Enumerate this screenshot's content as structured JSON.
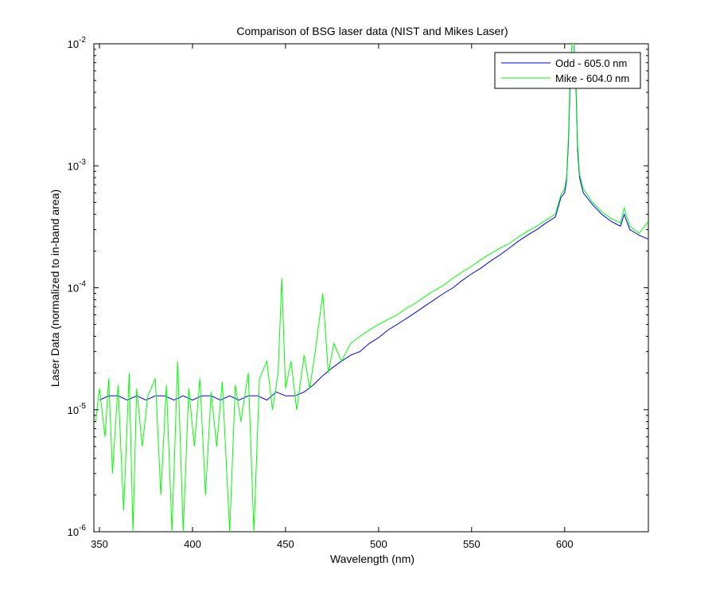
{
  "chart_data": {
    "type": "line",
    "title": "Comparison of BSG laser data (NIST and Mikes Laser)",
    "xlabel": "Wavelength (nm)",
    "ylabel": "Laser Data (normalized to in-band area)",
    "xlim": [
      347,
      645
    ],
    "ylim": [
      1e-06,
      0.01
    ],
    "yscale": "log",
    "grid": false,
    "legend_position": "top-right",
    "x_ticks": [
      {
        "value": 350,
        "label": "350"
      },
      {
        "value": 400,
        "label": "400"
      },
      {
        "value": 450,
        "label": "450"
      },
      {
        "value": 500,
        "label": "500"
      },
      {
        "value": 550,
        "label": "550"
      },
      {
        "value": 600,
        "label": "600"
      }
    ],
    "y_ticks": [
      {
        "value": 1e-06,
        "base": "10",
        "exp": "-6"
      },
      {
        "value": 1e-05,
        "base": "10",
        "exp": "-5"
      },
      {
        "value": 0.0001,
        "base": "10",
        "exp": "-4"
      },
      {
        "value": 0.001,
        "base": "10",
        "exp": "-3"
      },
      {
        "value": 0.01,
        "base": "10",
        "exp": "-2"
      }
    ],
    "series": [
      {
        "name": "Odd - 605.0 nm",
        "color": "#0000ff",
        "x": [
          350,
          355,
          360,
          365,
          370,
          375,
          380,
          385,
          390,
          395,
          400,
          405,
          410,
          415,
          420,
          425,
          430,
          435,
          440,
          445,
          450,
          455,
          460,
          465,
          470,
          475,
          480,
          485,
          490,
          495,
          500,
          505,
          510,
          515,
          520,
          525,
          530,
          535,
          540,
          545,
          550,
          555,
          560,
          565,
          570,
          575,
          580,
          585,
          590,
          595,
          598,
          600,
          601,
          602,
          603,
          604,
          605,
          606,
          607,
          608,
          610,
          615,
          620,
          625,
          630,
          632,
          635,
          640,
          645
        ],
        "y": [
          1.2e-05,
          1.3e-05,
          1.3e-05,
          1.2e-05,
          1.3e-05,
          1.2e-05,
          1.3e-05,
          1.3e-05,
          1.2e-05,
          1.3e-05,
          1.2e-05,
          1.3e-05,
          1.3e-05,
          1.2e-05,
          1.3e-05,
          1.2e-05,
          1.3e-05,
          1.3e-05,
          1.2e-05,
          1.4e-05,
          1.3e-05,
          1.3e-05,
          1.4e-05,
          1.6e-05,
          1.9e-05,
          2.2e-05,
          2.5e-05,
          2.8e-05,
          3e-05,
          3.5e-05,
          3.9e-05,
          4.5e-05,
          5e-05,
          5.6e-05,
          6.3e-05,
          7.1e-05,
          8e-05,
          9e-05,
          0.0001,
          0.000115,
          0.00013,
          0.000145,
          0.000165,
          0.000185,
          0.00021,
          0.00024,
          0.00027,
          0.0003,
          0.00034,
          0.00038,
          0.00055,
          0.0006,
          0.00075,
          0.0015,
          0.005,
          0.01,
          0.01,
          0.005,
          0.0013,
          0.0008,
          0.0006,
          0.00048,
          0.0004,
          0.00035,
          0.00032,
          0.0004,
          0.0003,
          0.00027,
          0.00025
        ]
      },
      {
        "name": "Mike - 604.0 nm",
        "color": "#00ff00",
        "x": [
          348,
          350,
          353,
          355,
          357,
          360,
          363,
          366,
          368,
          370,
          373,
          376,
          380,
          383,
          386,
          389,
          392,
          395,
          398,
          401,
          404,
          407,
          410,
          413,
          416,
          420,
          423,
          426,
          430,
          433,
          436,
          440,
          443,
          446,
          448,
          450,
          453,
          456,
          460,
          463,
          466,
          470,
          473,
          476,
          480,
          485,
          490,
          495,
          500,
          505,
          510,
          515,
          520,
          525,
          530,
          535,
          540,
          545,
          550,
          555,
          560,
          565,
          570,
          575,
          580,
          585,
          590,
          595,
          598,
          600,
          601,
          602,
          603,
          604,
          605,
          606,
          607,
          608,
          610,
          615,
          620,
          625,
          630,
          632,
          635,
          640,
          645
        ],
        "y": [
          8e-06,
          1.5e-05,
          6e-06,
          1.8e-05,
          3e-06,
          1.6e-05,
          1.5e-06,
          2e-05,
          1e-06,
          1.5e-05,
          5e-06,
          1.3e-05,
          1.8e-05,
          2e-06,
          1.6e-05,
          1e-06,
          2.5e-05,
          1e-06,
          1.5e-05,
          5e-06,
          1.8e-05,
          2e-06,
          1.4e-05,
          5e-06,
          1.7e-05,
          1e-06,
          1.6e-05,
          8e-06,
          2e-05,
          1e-06,
          1.8e-05,
          2.5e-05,
          1e-05,
          2e-05,
          0.00012,
          1.5e-05,
          2.5e-05,
          1e-05,
          2.8e-05,
          1.5e-05,
          3e-05,
          9e-05,
          2e-05,
          3.5e-05,
          2.5e-05,
          3.5e-05,
          4e-05,
          4.5e-05,
          5e-05,
          5.5e-05,
          6e-05,
          6.8e-05,
          7.5e-05,
          8.5e-05,
          9.5e-05,
          0.000105,
          0.00012,
          0.000135,
          0.00015,
          0.00017,
          0.00019,
          0.00021,
          0.00023,
          0.00026,
          0.00029,
          0.00032,
          0.00036,
          0.0004,
          0.00058,
          0.00065,
          0.0008,
          0.0017,
          0.006,
          0.01,
          0.01,
          0.006,
          0.0015,
          0.00085,
          0.00065,
          0.0005,
          0.00042,
          0.00037,
          0.00034,
          0.00045,
          0.00032,
          0.00028,
          0.00035
        ]
      }
    ]
  }
}
